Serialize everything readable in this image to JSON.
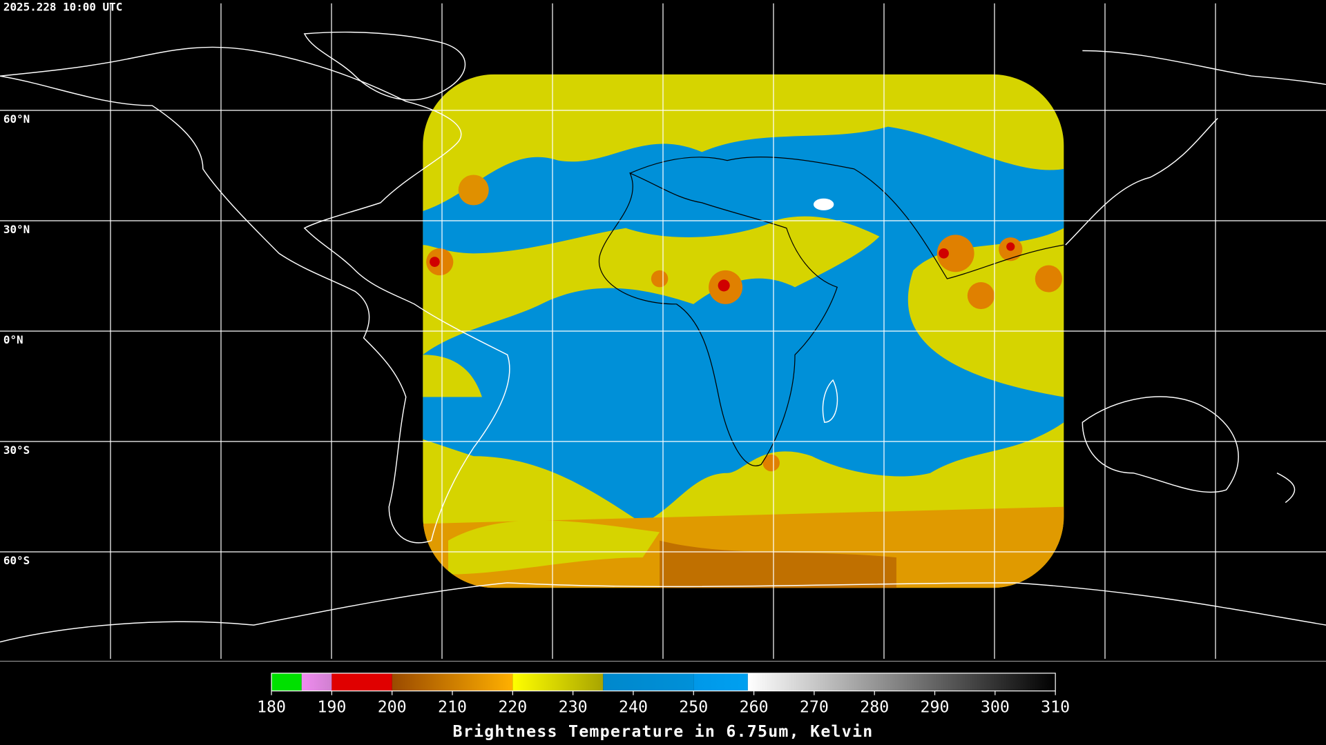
{
  "timestamp": "2025.228 10:00 UTC",
  "graticule": {
    "latitudes": [
      {
        "value": 60,
        "label": "60°N"
      },
      {
        "value": 30,
        "label": "30°N"
      },
      {
        "value": 0,
        "label": "0°N"
      },
      {
        "value": -30,
        "label": "30°S"
      },
      {
        "value": -60,
        "label": "60°S"
      }
    ]
  },
  "colorbar": {
    "title": "Brightness Temperature in 6.75um, Kelvin",
    "range": [
      180,
      310
    ],
    "ticks": [
      180,
      190,
      200,
      210,
      220,
      230,
      240,
      250,
      260,
      270,
      280,
      290,
      300,
      310
    ],
    "segments": [
      {
        "from": 180,
        "to": 185,
        "color": "#00e000",
        "color2": "#00e000"
      },
      {
        "from": 185,
        "to": 190,
        "color": "#f08cf0",
        "color2": "#d080d0"
      },
      {
        "from": 190,
        "to": 200,
        "color": "#e00000",
        "color2": "#e00000"
      },
      {
        "from": 200,
        "to": 220,
        "color": "#9a4a00",
        "color2": "#ffb000"
      },
      {
        "from": 220,
        "to": 235,
        "color": "#ffff00",
        "color2": "#a8a400"
      },
      {
        "from": 235,
        "to": 250,
        "color": "#0088cc",
        "color2": "#0090d8"
      },
      {
        "from": 250,
        "to": 259,
        "color": "#0098e8",
        "color2": "#00a0f0"
      },
      {
        "from": 259,
        "to": 310,
        "color": "#ffffff",
        "color2": "#000000"
      }
    ]
  }
}
